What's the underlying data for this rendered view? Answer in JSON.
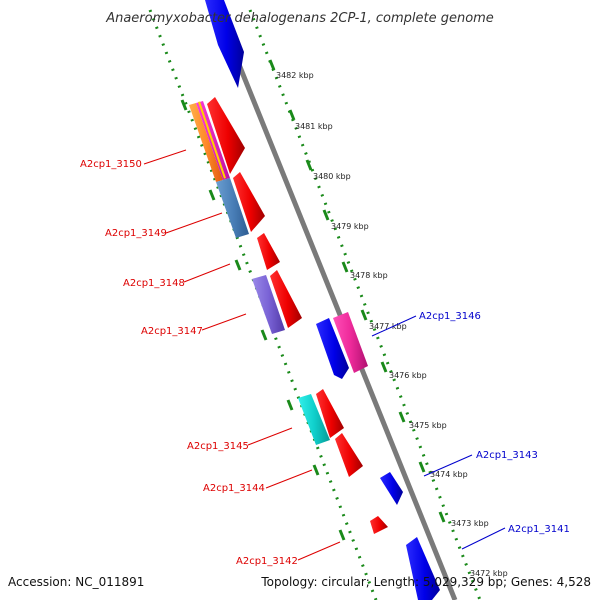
{
  "title": "Anaeromyxobacter dehalogenans 2CP-1, complete genome",
  "footer": {
    "accession": "Accession: NC_011891",
    "summary": "Topology: circular; Length: 5,029,329 bp; Genes: 4,528"
  },
  "ticks": [
    {
      "label": "3482 kbp"
    },
    {
      "label": "3481 kbp"
    },
    {
      "label": "3480 kbp"
    },
    {
      "label": "3479 kbp"
    },
    {
      "label": "3478 kbp"
    },
    {
      "label": "3477 kbp"
    },
    {
      "label": "3476 kbp"
    },
    {
      "label": "3475 kbp"
    },
    {
      "label": "3474 kbp"
    },
    {
      "label": "3473 kbp"
    },
    {
      "label": "3472 kbp"
    }
  ],
  "gene_labels": {
    "reverse": [
      "A2cp1_3150",
      "A2cp1_3149",
      "A2cp1_3148",
      "A2cp1_3147",
      "A2cp1_3145",
      "A2cp1_3144",
      "A2cp1_3142"
    ],
    "forward": [
      "A2cp1_3146",
      "A2cp1_3143",
      "A2cp1_3141"
    ]
  },
  "colors": {
    "reverse_label": "#dd0000",
    "forward_label": "#0000cc",
    "backbone": "#888888",
    "tick_mark": "#1a8a1a",
    "cds": "#ff0000",
    "reverse_gene": "#0000ee"
  }
}
